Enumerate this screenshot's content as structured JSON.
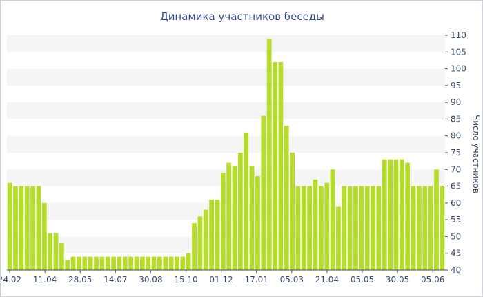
{
  "chart_data": {
    "type": "bar",
    "title": "Динамика участников беседы",
    "xlabel": "",
    "ylabel": "Число участников",
    "ylim": [
      40,
      110
    ],
    "y_ticks": [
      40,
      45,
      50,
      55,
      60,
      65,
      70,
      75,
      80,
      85,
      90,
      95,
      100,
      105,
      110
    ],
    "x_tick_labels": [
      "24.02",
      "11.04",
      "28.05",
      "14.07",
      "30.08",
      "15.10",
      "01.12",
      "17.01",
      "05.03",
      "21.04",
      "05.05",
      "30.05",
      "05.06"
    ],
    "grid": "horizontal alternating bands",
    "bar_color": "#b5db2b",
    "band_color": "#f5f5f5",
    "values": [
      66,
      65,
      65,
      65,
      65,
      65,
      60,
      51,
      51,
      48,
      43,
      44,
      44,
      44,
      44,
      44,
      44,
      44,
      44,
      44,
      44,
      44,
      44,
      44,
      44,
      44,
      44,
      44,
      44,
      44,
      44,
      45,
      54,
      56,
      58,
      61,
      61,
      69,
      72,
      71,
      75,
      81,
      71,
      68,
      86,
      109,
      102,
      102,
      83,
      75,
      65,
      65,
      65,
      67,
      65,
      66,
      70,
      59,
      65,
      65,
      65,
      65,
      65,
      65,
      65,
      73,
      73,
      73,
      73,
      72,
      65,
      65,
      65,
      65,
      70,
      65
    ]
  }
}
